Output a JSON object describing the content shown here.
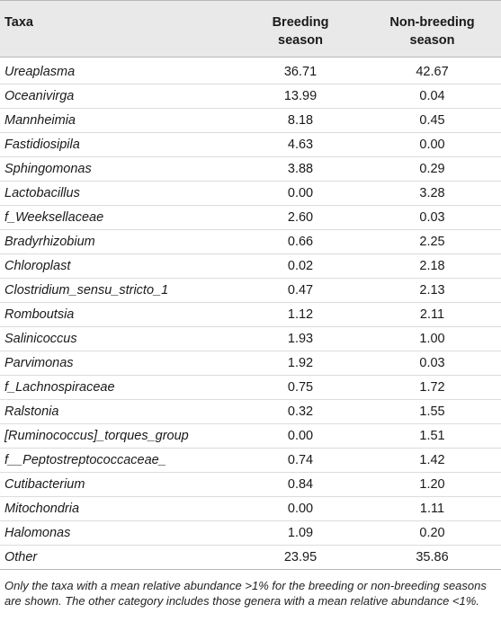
{
  "table": {
    "headers": {
      "taxa": "Taxa",
      "breeding": [
        "Breeding",
        "season"
      ],
      "nonbreeding": [
        "Non-breeding",
        "season"
      ]
    },
    "rows": [
      {
        "taxa": "Ureaplasma",
        "breeding": "36.71",
        "nonbreeding": "42.67"
      },
      {
        "taxa": "Oceanivirga",
        "breeding": "13.99",
        "nonbreeding": "0.04"
      },
      {
        "taxa": "Mannheimia",
        "breeding": "8.18",
        "nonbreeding": "0.45"
      },
      {
        "taxa": "Fastidiosipila",
        "breeding": "4.63",
        "nonbreeding": "0.00"
      },
      {
        "taxa": "Sphingomonas",
        "breeding": "3.88",
        "nonbreeding": "0.29"
      },
      {
        "taxa": "Lactobacillus",
        "breeding": "0.00",
        "nonbreeding": "3.28"
      },
      {
        "taxa": "f_Weeksellaceae",
        "breeding": "2.60",
        "nonbreeding": "0.03"
      },
      {
        "taxa": "Bradyrhizobium",
        "breeding": "0.66",
        "nonbreeding": "2.25"
      },
      {
        "taxa": "Chloroplast",
        "breeding": "0.02",
        "nonbreeding": "2.18"
      },
      {
        "taxa": "Clostridium_sensu_stricto_1",
        "breeding": "0.47",
        "nonbreeding": "2.13"
      },
      {
        "taxa": "Romboutsia",
        "breeding": "1.12",
        "nonbreeding": "2.11"
      },
      {
        "taxa": "Salinicoccus",
        "breeding": "1.93",
        "nonbreeding": "1.00"
      },
      {
        "taxa": "Parvimonas",
        "breeding": "1.92",
        "nonbreeding": "0.03"
      },
      {
        "taxa": "f_Lachnospiraceae",
        "breeding": "0.75",
        "nonbreeding": "1.72"
      },
      {
        "taxa": "Ralstonia",
        "breeding": "0.32",
        "nonbreeding": "1.55"
      },
      {
        "taxa": "[Ruminococcus]_torques_group",
        "breeding": "0.00",
        "nonbreeding": "1.51"
      },
      {
        "taxa": "f__Peptostreptococcaceae_",
        "breeding": "0.74",
        "nonbreeding": "1.42"
      },
      {
        "taxa": "Cutibacterium",
        "breeding": "0.84",
        "nonbreeding": "1.20"
      },
      {
        "taxa": "Mitochondria",
        "breeding": "0.00",
        "nonbreeding": "1.11"
      },
      {
        "taxa": "Halomonas",
        "breeding": "1.09",
        "nonbreeding": "0.20"
      },
      {
        "taxa": "Other",
        "breeding": "23.95",
        "nonbreeding": "35.86"
      }
    ]
  },
  "footnote": "Only the taxa with a mean relative abundance >1% for the breeding or non-breeding seasons are shown. The other category includes those genera with a mean relative abundance <1%."
}
